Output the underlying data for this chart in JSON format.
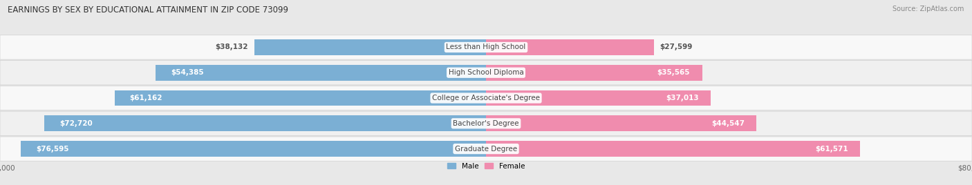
{
  "title": "EARNINGS BY SEX BY EDUCATIONAL ATTAINMENT IN ZIP CODE 73099",
  "source": "Source: ZipAtlas.com",
  "categories": [
    "Less than High School",
    "High School Diploma",
    "College or Associate's Degree",
    "Bachelor's Degree",
    "Graduate Degree"
  ],
  "male_values": [
    38132,
    54385,
    61162,
    72720,
    76595
  ],
  "female_values": [
    27599,
    35565,
    37013,
    44547,
    61571
  ],
  "male_color": "#7bafd4",
  "female_color": "#f08cae",
  "max_value": 80000,
  "background_color": "#e8e8e8",
  "row_bg_color": "#f5f5f5",
  "row_bg_color2": "#ebebeb",
  "title_fontsize": 8.5,
  "source_fontsize": 7,
  "label_fontsize": 7.5,
  "tick_fontsize": 7.5,
  "cat_fontsize": 7.5
}
